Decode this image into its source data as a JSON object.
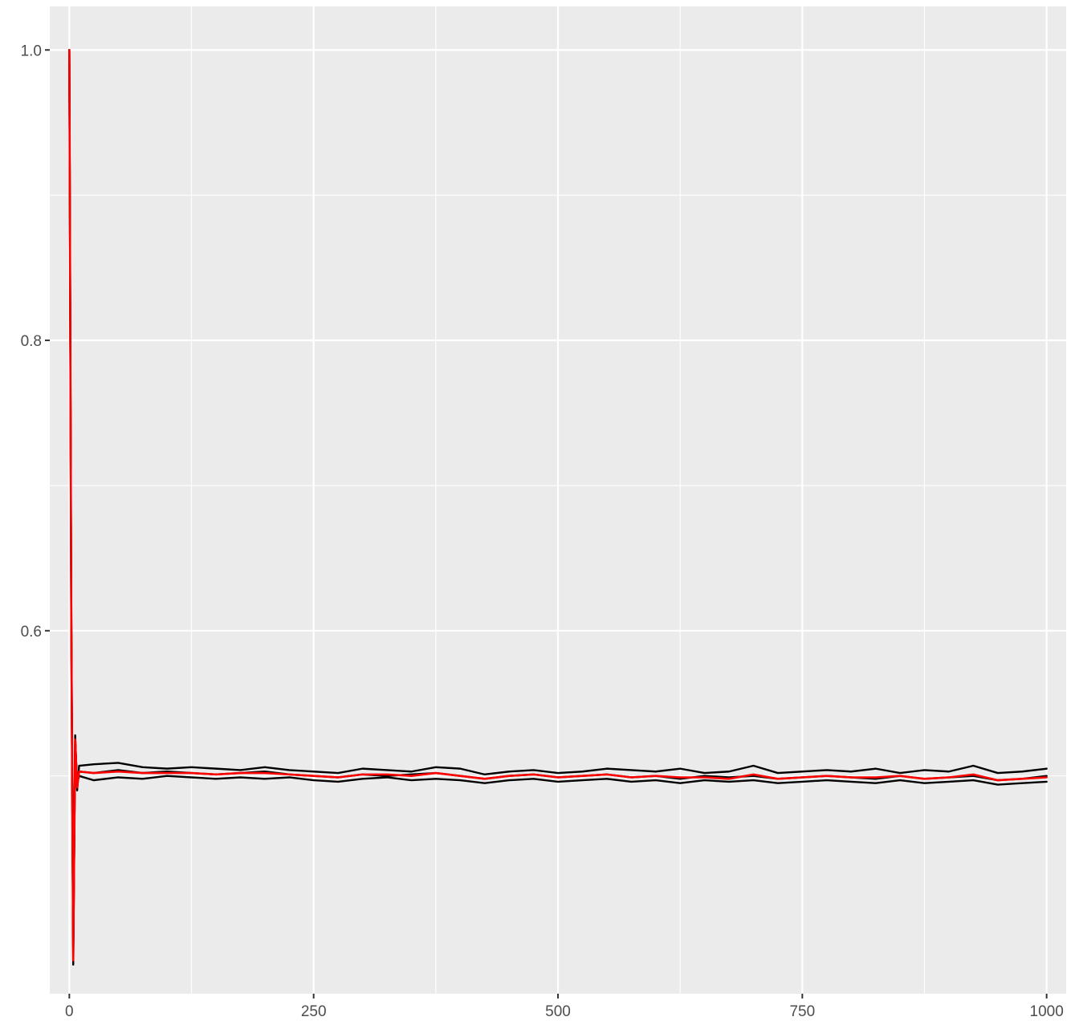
{
  "chart_data": {
    "type": "line",
    "title": "",
    "xlabel": "",
    "ylabel": "",
    "xlim": [
      -20,
      1020
    ],
    "ylim": [
      0.35,
      1.03
    ],
    "x_ticks": [
      0,
      250,
      500,
      750,
      1000
    ],
    "x_tick_labels": [
      "0",
      "250",
      "500",
      "750",
      "1000"
    ],
    "y_ticks": [
      0.6,
      0.8,
      1.0
    ],
    "y_tick_labels": [
      "0.6",
      "0.8",
      "1.0"
    ],
    "grid": true,
    "legend": "none",
    "panel_background": "#ebebeb",
    "grid_color": "#ffffff",
    "series_colors": [
      "#000000",
      "#000000",
      "#000000",
      "#ff0000"
    ],
    "series": [
      {
        "color": "#000000",
        "x": [
          0,
          2,
          4,
          6,
          8,
          10,
          25,
          50,
          75,
          100,
          125,
          150,
          175,
          200,
          225,
          250,
          275,
          300,
          325,
          350,
          375,
          400,
          425,
          450,
          475,
          500,
          525,
          550,
          575,
          600,
          625,
          650,
          675,
          700,
          725,
          750,
          775,
          800,
          825,
          850,
          875,
          900,
          925,
          950,
          975,
          1000
        ],
        "y": [
          1.0,
          0.62,
          0.37,
          0.528,
          0.49,
          0.507,
          0.508,
          0.509,
          0.506,
          0.505,
          0.506,
          0.505,
          0.504,
          0.506,
          0.504,
          0.503,
          0.502,
          0.505,
          0.504,
          0.503,
          0.506,
          0.505,
          0.501,
          0.503,
          0.504,
          0.502,
          0.503,
          0.505,
          0.504,
          0.503,
          0.505,
          0.502,
          0.503,
          0.507,
          0.502,
          0.503,
          0.504,
          0.503,
          0.505,
          0.502,
          0.504,
          0.503,
          0.507,
          0.502,
          0.503,
          0.505
        ]
      },
      {
        "color": "#000000",
        "x": [
          0,
          2,
          4,
          6,
          8,
          10,
          25,
          50,
          75,
          100,
          125,
          150,
          175,
          200,
          225,
          250,
          275,
          300,
          325,
          350,
          375,
          400,
          425,
          450,
          475,
          500,
          525,
          550,
          575,
          600,
          625,
          650,
          675,
          700,
          725,
          750,
          775,
          800,
          825,
          850,
          875,
          900,
          925,
          950,
          975,
          1000
        ],
        "y": [
          1.0,
          0.6,
          0.38,
          0.522,
          0.495,
          0.5,
          0.497,
          0.499,
          0.498,
          0.5,
          0.499,
          0.498,
          0.499,
          0.498,
          0.499,
          0.497,
          0.496,
          0.498,
          0.499,
          0.497,
          0.498,
          0.497,
          0.495,
          0.497,
          0.498,
          0.496,
          0.497,
          0.498,
          0.496,
          0.497,
          0.495,
          0.497,
          0.496,
          0.497,
          0.495,
          0.496,
          0.497,
          0.496,
          0.495,
          0.497,
          0.495,
          0.496,
          0.497,
          0.494,
          0.495,
          0.496
        ]
      },
      {
        "color": "#000000",
        "x": [
          0,
          2,
          4,
          6,
          8,
          10,
          25,
          50,
          75,
          100,
          125,
          150,
          175,
          200,
          225,
          250,
          275,
          300,
          325,
          350,
          375,
          400,
          425,
          450,
          475,
          500,
          525,
          550,
          575,
          600,
          625,
          650,
          675,
          700,
          725,
          750,
          775,
          800,
          825,
          850,
          875,
          900,
          925,
          950,
          975,
          1000
        ],
        "y": [
          1.0,
          0.61,
          0.375,
          0.525,
          0.492,
          0.503,
          0.502,
          0.504,
          0.502,
          0.503,
          0.502,
          0.501,
          0.502,
          0.503,
          0.501,
          0.5,
          0.499,
          0.501,
          0.5,
          0.501,
          0.502,
          0.5,
          0.498,
          0.5,
          0.501,
          0.499,
          0.5,
          0.501,
          0.499,
          0.5,
          0.498,
          0.5,
          0.499,
          0.5,
          0.498,
          0.499,
          0.5,
          0.499,
          0.498,
          0.5,
          0.498,
          0.499,
          0.5,
          0.497,
          0.498,
          0.5
        ]
      },
      {
        "color": "#ff0000",
        "x": [
          0,
          2,
          4,
          6,
          8,
          10,
          25,
          50,
          75,
          100,
          125,
          150,
          175,
          200,
          225,
          250,
          275,
          300,
          325,
          350,
          375,
          400,
          425,
          450,
          475,
          500,
          525,
          550,
          575,
          600,
          625,
          650,
          675,
          700,
          725,
          750,
          775,
          800,
          825,
          850,
          875,
          900,
          925,
          950,
          975,
          1000
        ],
        "y": [
          1.0,
          0.61,
          0.373,
          0.525,
          0.492,
          0.503,
          0.502,
          0.503,
          0.502,
          0.502,
          0.502,
          0.501,
          0.502,
          0.502,
          0.501,
          0.5,
          0.499,
          0.501,
          0.501,
          0.5,
          0.502,
          0.5,
          0.498,
          0.5,
          0.501,
          0.499,
          0.5,
          0.501,
          0.499,
          0.5,
          0.499,
          0.499,
          0.498,
          0.501,
          0.498,
          0.499,
          0.5,
          0.499,
          0.499,
          0.5,
          0.498,
          0.499,
          0.501,
          0.497,
          0.498,
          0.499
        ]
      }
    ]
  }
}
